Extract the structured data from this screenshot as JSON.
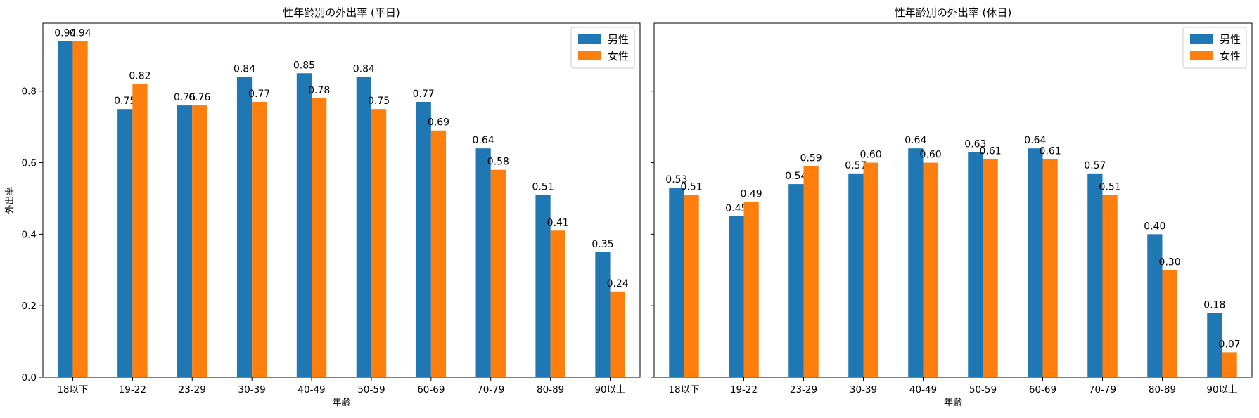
{
  "colors": {
    "male": "#1f77b4",
    "female": "#ff7f0e"
  },
  "chart_data": [
    {
      "type": "bar",
      "title": "性年齢別の外出率 (平日)",
      "xlabel": "年齢",
      "ylabel": "外出率",
      "ylim": [
        0,
        0.99
      ],
      "yticks": [
        {
          "value": 0.0,
          "label": "0.0"
        },
        {
          "value": 0.2,
          "label": "0.2"
        },
        {
          "value": 0.4,
          "label": "0.4"
        },
        {
          "value": 0.6,
          "label": "0.6"
        },
        {
          "value": 0.8,
          "label": "0.8"
        }
      ],
      "categories": [
        "18以下",
        "19-22",
        "23-29",
        "30-39",
        "40-49",
        "50-59",
        "60-69",
        "70-79",
        "80-89",
        "90以上"
      ],
      "series": [
        {
          "name": "男性",
          "values": [
            0.94,
            0.75,
            0.76,
            0.84,
            0.85,
            0.84,
            0.77,
            0.64,
            0.51,
            0.35
          ]
        },
        {
          "name": "女性",
          "values": [
            0.94,
            0.82,
            0.76,
            0.77,
            0.78,
            0.75,
            0.69,
            0.58,
            0.41,
            0.24
          ]
        }
      ],
      "legend": "top-right",
      "grid": false
    },
    {
      "type": "bar",
      "title": "性年齢別の外出率 (休日)",
      "xlabel": "年齢",
      "ylabel": "",
      "ylim": [
        0,
        0.99
      ],
      "yticks": [],
      "categories": [
        "18以下",
        "19-22",
        "23-29",
        "30-39",
        "40-49",
        "50-59",
        "60-69",
        "70-79",
        "80-89",
        "90以上"
      ],
      "series": [
        {
          "name": "男性",
          "values": [
            0.53,
            0.45,
            0.54,
            0.57,
            0.64,
            0.63,
            0.64,
            0.57,
            0.4,
            0.18
          ]
        },
        {
          "name": "女性",
          "values": [
            0.51,
            0.49,
            0.59,
            0.6,
            0.6,
            0.61,
            0.61,
            0.51,
            0.3,
            0.07
          ]
        }
      ],
      "legend": "top-right",
      "grid": false
    }
  ]
}
